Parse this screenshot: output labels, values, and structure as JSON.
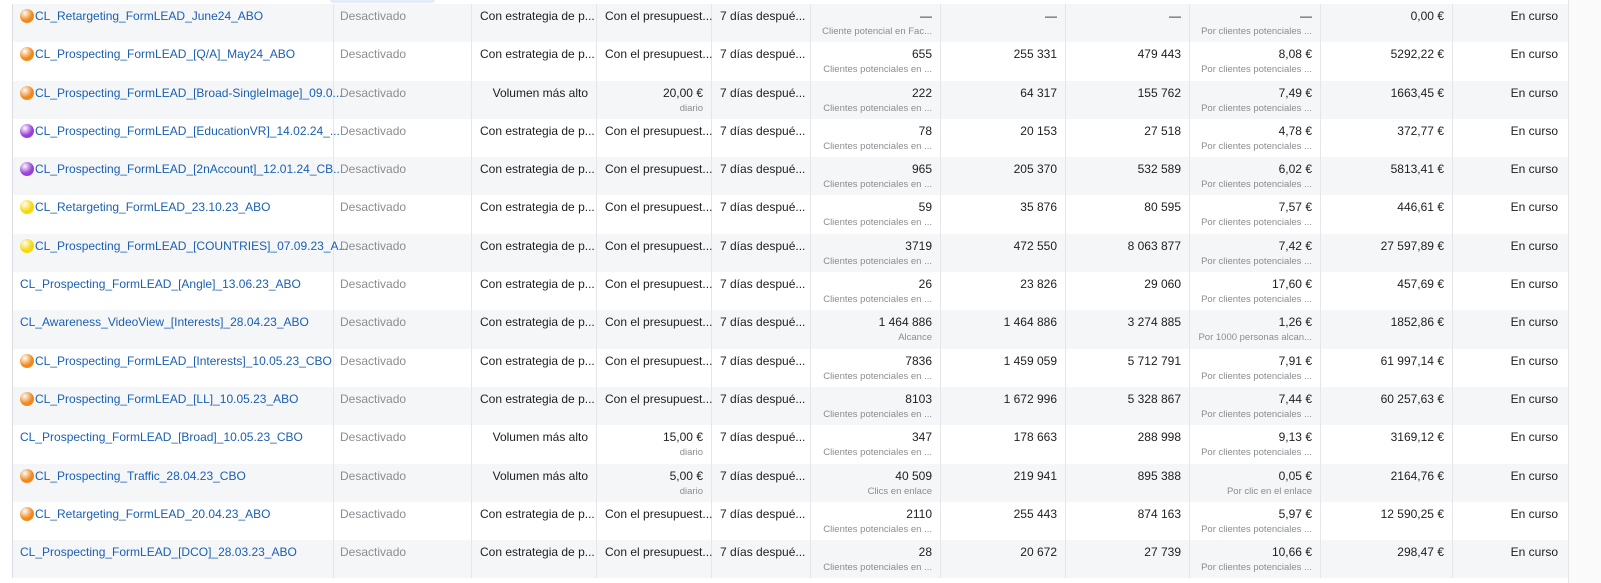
{
  "icon_colors": {
    "orange": "#f0891c",
    "purple": "#9b3fd9",
    "yellow": "#f5d90a"
  },
  "rows": [
    {
      "icon": "orange",
      "name": "CL_Retargeting_FormLEAD_June24_ABO",
      "status": "Desactivado",
      "bid": "Con estrategia de p...",
      "budget": "Con el presupuest...",
      "budget_sub": "",
      "attribution": "7 días despué...",
      "results": "—",
      "results_sub": "Cliente potencial en Fac...",
      "reach": "—",
      "impressions": "—",
      "cost": "—",
      "cost_sub": "Por clientes potenciales ...",
      "spent": "0,00 €",
      "end": "En curso"
    },
    {
      "icon": "orange",
      "name": "CL_Prospecting_FormLEAD_[Q/A]_May24_ABO",
      "status": "Desactivado",
      "bid": "Con estrategia de p...",
      "budget": "Con el presupuest...",
      "budget_sub": "",
      "attribution": "7 días despué...",
      "results": "655",
      "results_sub": "Clientes potenciales en ...",
      "reach": "255 331",
      "impressions": "479 443",
      "cost": "8,08 €",
      "cost_sub": "Por clientes potenciales ...",
      "spent": "5292,22 €",
      "end": "En curso"
    },
    {
      "icon": "orange",
      "name": "CL_Prospecting_FormLEAD_[Broad-SingleImage]_09.0...",
      "status": "Desactivado",
      "bid": "Volumen más alto",
      "budget": "20,00 €",
      "budget_sub": "diario",
      "attribution": "7 días despué...",
      "results": "222",
      "results_sub": "Clientes potenciales en ...",
      "reach": "64 317",
      "impressions": "155 762",
      "cost": "7,49 €",
      "cost_sub": "Por clientes potenciales ...",
      "spent": "1663,45 €",
      "end": "En curso"
    },
    {
      "icon": "purple",
      "name": "CL_Prospecting_FormLEAD_[EducationVR]_14.02.24_...",
      "status": "Desactivado",
      "bid": "Con estrategia de p...",
      "budget": "Con el presupuest...",
      "budget_sub": "",
      "attribution": "7 días despué...",
      "results": "78",
      "results_sub": "Clientes potenciales en ...",
      "reach": "20 153",
      "impressions": "27 518",
      "cost": "4,78 €",
      "cost_sub": "Por clientes potenciales ...",
      "spent": "372,77 €",
      "end": "En curso"
    },
    {
      "icon": "purple",
      "name": "CL_Prospecting_FormLEAD_[2nAccount]_12.01.24_CB...",
      "status": "Desactivado",
      "bid": "Con estrategia de p...",
      "budget": "Con el presupuest...",
      "budget_sub": "",
      "attribution": "7 días despué...",
      "results": "965",
      "results_sub": "Clientes potenciales en ...",
      "reach": "205 370",
      "impressions": "532 589",
      "cost": "6,02 €",
      "cost_sub": "Por clientes potenciales ...",
      "spent": "5813,41 €",
      "end": "En curso"
    },
    {
      "icon": "yellow",
      "name": "CL_Retargeting_FormLEAD_23.10.23_ABO",
      "status": "Desactivado",
      "bid": "Con estrategia de p...",
      "budget": "Con el presupuest...",
      "budget_sub": "",
      "attribution": "7 días despué...",
      "results": "59",
      "results_sub": "Clientes potenciales en ...",
      "reach": "35 876",
      "impressions": "80 595",
      "cost": "7,57 €",
      "cost_sub": "Por clientes potenciales ...",
      "spent": "446,61 €",
      "end": "En curso"
    },
    {
      "icon": "yellow",
      "name": "CL_Prospecting_FormLEAD_[COUNTRIES]_07.09.23_A...",
      "status": "Desactivado",
      "bid": "Con estrategia de p...",
      "budget": "Con el presupuest...",
      "budget_sub": "",
      "attribution": "7 días despué...",
      "results": "3719",
      "results_sub": "Clientes potenciales en ...",
      "reach": "472 550",
      "impressions": "8 063 877",
      "cost": "7,42 €",
      "cost_sub": "Por clientes potenciales ...",
      "spent": "27 597,89 €",
      "end": "En curso"
    },
    {
      "icon": "",
      "name": "CL_Prospecting_FormLEAD_[Angle]_13.06.23_ABO",
      "status": "Desactivado",
      "bid": "Con estrategia de p...",
      "budget": "Con el presupuest...",
      "budget_sub": "",
      "attribution": "7 días despué...",
      "results": "26",
      "results_sub": "Clientes potenciales en ...",
      "reach": "23 826",
      "impressions": "29 060",
      "cost": "17,60 €",
      "cost_sub": "Por clientes potenciales ...",
      "spent": "457,69 €",
      "end": "En curso"
    },
    {
      "icon": "",
      "name": "CL_Awareness_VideoView_[Interests]_28.04.23_ABO",
      "status": "Desactivado",
      "bid": "Con estrategia de p...",
      "budget": "Con el presupuest...",
      "budget_sub": "",
      "attribution": "7 días despué...",
      "results": "1 464 886",
      "results_sub": "Alcance",
      "reach": "1 464 886",
      "impressions": "3 274 885",
      "cost": "1,26 €",
      "cost_sub": "Por 1000 personas alcan...",
      "spent": "1852,86 €",
      "end": "En curso"
    },
    {
      "icon": "orange",
      "name": "CL_Prospecting_FormLEAD_[Interests]_10.05.23_CBO",
      "status": "Desactivado",
      "bid": "Con estrategia de p...",
      "budget": "Con el presupuest...",
      "budget_sub": "",
      "attribution": "7 días despué...",
      "results": "7836",
      "results_sub": "Clientes potenciales en ...",
      "reach": "1 459 059",
      "impressions": "5 712 791",
      "cost": "7,91 €",
      "cost_sub": "Por clientes potenciales ...",
      "spent": "61 997,14 €",
      "end": "En curso"
    },
    {
      "icon": "orange",
      "name": "CL_Prospecting_FormLEAD_[LL]_10.05.23_ABO",
      "status": "Desactivado",
      "bid": "Con estrategia de p...",
      "budget": "Con el presupuest...",
      "budget_sub": "",
      "attribution": "7 días despué...",
      "results": "8103",
      "results_sub": "Clientes potenciales en ...",
      "reach": "1 672 996",
      "impressions": "5 328 867",
      "cost": "7,44 €",
      "cost_sub": "Por clientes potenciales ...",
      "spent": "60 257,63 €",
      "end": "En curso"
    },
    {
      "icon": "",
      "name": "CL_Prospecting_FormLEAD_[Broad]_10.05.23_CBO",
      "status": "Desactivado",
      "bid": "Volumen más alto",
      "budget": "15,00 €",
      "budget_sub": "diario",
      "attribution": "7 días despué...",
      "results": "347",
      "results_sub": "Clientes potenciales en ...",
      "reach": "178 663",
      "impressions": "288 998",
      "cost": "9,13 €",
      "cost_sub": "Por clientes potenciales ...",
      "spent": "3169,12 €",
      "end": "En curso"
    },
    {
      "icon": "orange",
      "name": "CL_Prospecting_Traffic_28.04.23_CBO",
      "status": "Desactivado",
      "bid": "Volumen más alto",
      "budget": "5,00 €",
      "budget_sub": "diario",
      "attribution": "7 días despué...",
      "results": "40 509",
      "results_sub": "Clics en enlace",
      "reach": "219 941",
      "impressions": "895 388",
      "cost": "0,05 €",
      "cost_sub": "Por clic en el enlace",
      "spent": "2164,76 €",
      "end": "En curso"
    },
    {
      "icon": "orange",
      "name": "CL_Retargeting_FormLEAD_20.04.23_ABO",
      "status": "Desactivado",
      "bid": "Con estrategia de p...",
      "budget": "Con el presupuest...",
      "budget_sub": "",
      "attribution": "7 días despué...",
      "results": "2110",
      "results_sub": "Clientes potenciales en ...",
      "reach": "255 443",
      "impressions": "874 163",
      "cost": "5,97 €",
      "cost_sub": "Por clientes potenciales ...",
      "spent": "12 590,25 €",
      "end": "En curso"
    },
    {
      "icon": "",
      "name": "CL_Prospecting_FormLEAD_[DCO]_28.03.23_ABO",
      "status": "Desactivado",
      "bid": "Con estrategia de p...",
      "budget": "Con el presupuest...",
      "budget_sub": "",
      "attribution": "7 días despué...",
      "results": "28",
      "results_sub": "Clientes potenciales en ...",
      "reach": "20 672",
      "impressions": "27 739",
      "cost": "10,66 €",
      "cost_sub": "Por clientes potenciales ...",
      "spent": "298,47 €",
      "end": "En curso"
    }
  ]
}
